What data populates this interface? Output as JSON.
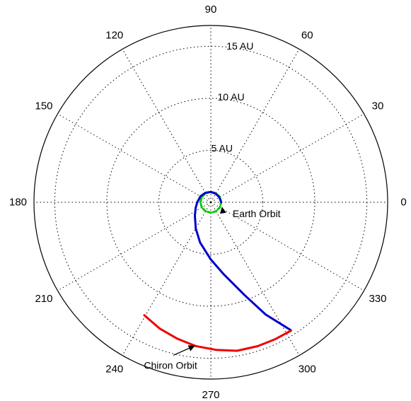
{
  "chart_data": {
    "type": "polar",
    "rmax": 17,
    "angle_ticks": [
      {
        "deg": 0,
        "label": "0"
      },
      {
        "deg": 30,
        "label": "30"
      },
      {
        "deg": 60,
        "label": "60"
      },
      {
        "deg": 90,
        "label": "90"
      },
      {
        "deg": 120,
        "label": "120"
      },
      {
        "deg": 150,
        "label": "150"
      },
      {
        "deg": 180,
        "label": "180"
      },
      {
        "deg": 210,
        "label": "210"
      },
      {
        "deg": 240,
        "label": "240"
      },
      {
        "deg": 270,
        "label": "270"
      },
      {
        "deg": 300,
        "label": "300"
      },
      {
        "deg": 330,
        "label": "330"
      }
    ],
    "radius_ticks": [
      {
        "r": 5,
        "label": "5 AU"
      },
      {
        "r": 10,
        "label": "10 AU"
      },
      {
        "r": 15,
        "label": "15 AU"
      }
    ],
    "grid": true,
    "series": [
      {
        "id": "earth",
        "color": "#00cc00",
        "style": "dashed",
        "points": [
          {
            "theta": 0,
            "r": 1.0
          },
          {
            "theta": 30,
            "r": 1.0
          },
          {
            "theta": 60,
            "r": 1.0
          },
          {
            "theta": 90,
            "r": 1.0
          },
          {
            "theta": 120,
            "r": 1.0
          },
          {
            "theta": 150,
            "r": 1.0
          },
          {
            "theta": 180,
            "r": 1.0
          },
          {
            "theta": 210,
            "r": 1.0
          },
          {
            "theta": 240,
            "r": 1.0
          },
          {
            "theta": 270,
            "r": 1.0
          },
          {
            "theta": 300,
            "r": 1.0
          },
          {
            "theta": 330,
            "r": 1.0
          },
          {
            "theta": 360,
            "r": 1.0
          }
        ]
      },
      {
        "id": "transfer",
        "color": "#0000cc",
        "style": "solid",
        "points": [
          {
            "theta": 0,
            "r": 1.0
          },
          {
            "theta": 30,
            "r": 0.95
          },
          {
            "theta": 60,
            "r": 0.95
          },
          {
            "theta": 90,
            "r": 1.0
          },
          {
            "theta": 120,
            "r": 1.05
          },
          {
            "theta": 150,
            "r": 1.15
          },
          {
            "theta": 180,
            "r": 1.3
          },
          {
            "theta": 200,
            "r": 1.55
          },
          {
            "theta": 220,
            "r": 2.0
          },
          {
            "theta": 240,
            "r": 2.9
          },
          {
            "theta": 255,
            "r": 4.0
          },
          {
            "theta": 270,
            "r": 5.5
          },
          {
            "theta": 280,
            "r": 7.0
          },
          {
            "theta": 290,
            "r": 9.5
          },
          {
            "theta": 296,
            "r": 12.0
          },
          {
            "theta": 302,
            "r": 14.5
          }
        ]
      },
      {
        "id": "chiron",
        "color": "#ee0000",
        "style": "solid",
        "points": [
          {
            "theta": 239.5,
            "r": 12.6
          },
          {
            "theta": 248,
            "r": 13.1
          },
          {
            "theta": 256,
            "r": 13.5
          },
          {
            "theta": 264,
            "r": 13.9
          },
          {
            "theta": 272,
            "r": 14.2
          },
          {
            "theta": 280,
            "r": 14.5
          },
          {
            "theta": 288,
            "r": 14.55
          },
          {
            "theta": 295,
            "r": 14.55
          },
          {
            "theta": 302,
            "r": 14.55
          }
        ]
      }
    ],
    "annotations": [
      {
        "label": "Earth Orbit",
        "text_theta": -12,
        "text_r": 4.5,
        "arrow_to_theta": -25,
        "arrow_to_r": 1.2
      },
      {
        "label": "Chiron Orbit",
        "text_theta": 256,
        "text_r": 16.0,
        "arrow_to_theta": 263.5,
        "arrow_to_r": 13.9
      }
    ]
  }
}
